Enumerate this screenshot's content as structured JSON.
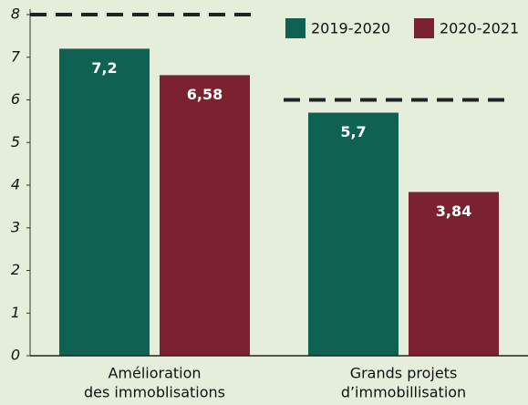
{
  "chart_data": {
    "type": "bar",
    "categories": [
      [
        "Amélioration",
        "des immoblisations"
      ],
      [
        "Grands projets",
        "d’immobillisation"
      ]
    ],
    "series": [
      {
        "name": "2019-2020",
        "color": "#0f6152",
        "values": [
          7.2,
          5.7
        ],
        "value_labels": [
          "7,2",
          "5,7"
        ]
      },
      {
        "name": "2020-2021",
        "color": "#7a2230",
        "values": [
          6.58,
          3.84
        ],
        "value_labels": [
          "6,58",
          "3,84"
        ]
      }
    ],
    "targets": [
      8,
      6
    ],
    "ylim": [
      0,
      8
    ],
    "yticks": [
      0,
      1,
      2,
      3,
      4,
      5,
      6,
      7,
      8
    ],
    "legend": "top-right"
  }
}
